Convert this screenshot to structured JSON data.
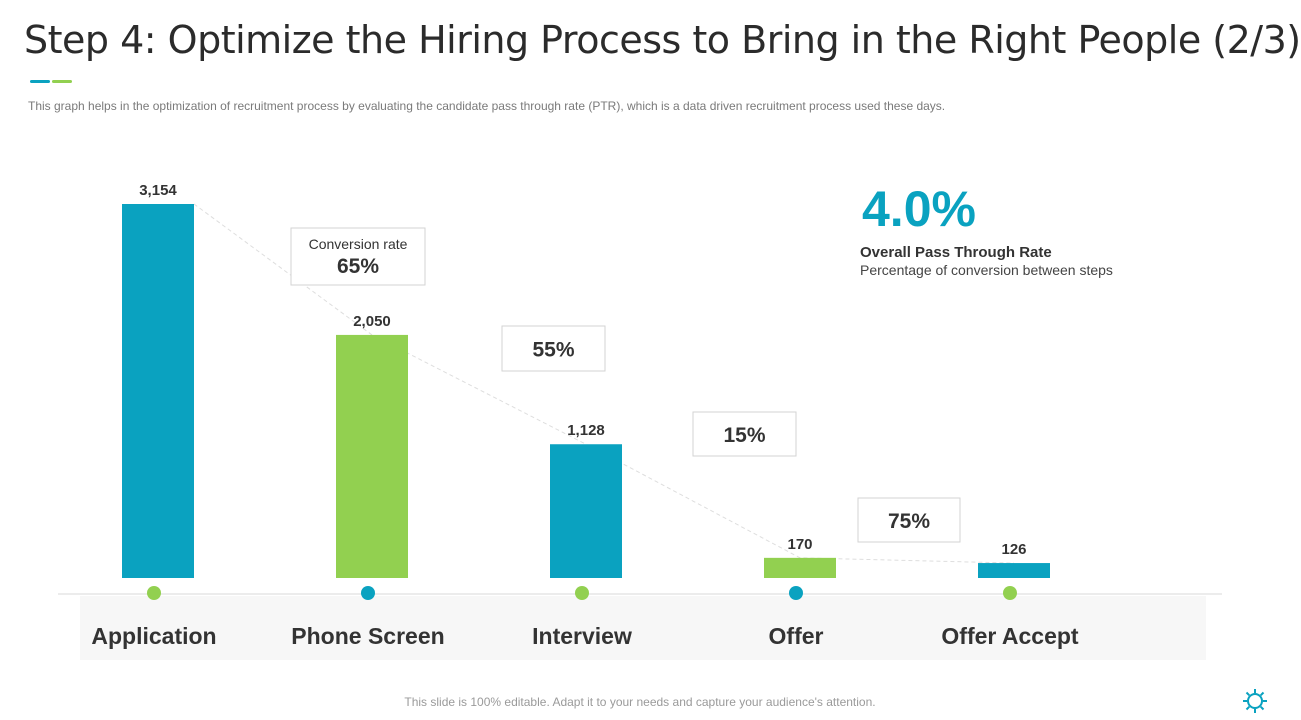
{
  "header": {
    "title": "Step 4: Optimize the Hiring Process to Bring in the Right People (2/3)",
    "subtitle": "This graph helps in the optimization of recruitment process by evaluating  the candidate pass through rate (PTR),  which is a data driven  recruitment process used these days."
  },
  "colors": {
    "teal": "#0aa2c0",
    "green": "#92d050"
  },
  "chart_data": {
    "type": "bar",
    "categories": [
      "Application",
      "Phone Screen",
      "Interview",
      "Offer",
      "Offer Accept"
    ],
    "values": [
      3154,
      2050,
      1128,
      170,
      126
    ],
    "value_labels": [
      "3,154",
      "2,050",
      "1,128",
      "170",
      "126"
    ],
    "bar_colors": [
      "teal",
      "green",
      "teal",
      "green",
      "teal"
    ],
    "dot_colors": [
      "green",
      "teal",
      "green",
      "teal",
      "green"
    ],
    "conversion_rates": [
      "65%",
      "55%",
      "15%",
      "75%"
    ],
    "conversion_caption": "Conversion rate",
    "ylim": [
      0,
      3154
    ],
    "title": "",
    "xlabel": "",
    "ylabel": ""
  },
  "summary": {
    "value": "4.0%",
    "label": "Overall Pass Through Rate",
    "description": "Percentage of conversion between steps"
  },
  "footer": {
    "text": "This slide is 100% editable. Adapt it to your needs and capture your audience's attention."
  },
  "icons": {
    "corner": "gear-icon"
  }
}
